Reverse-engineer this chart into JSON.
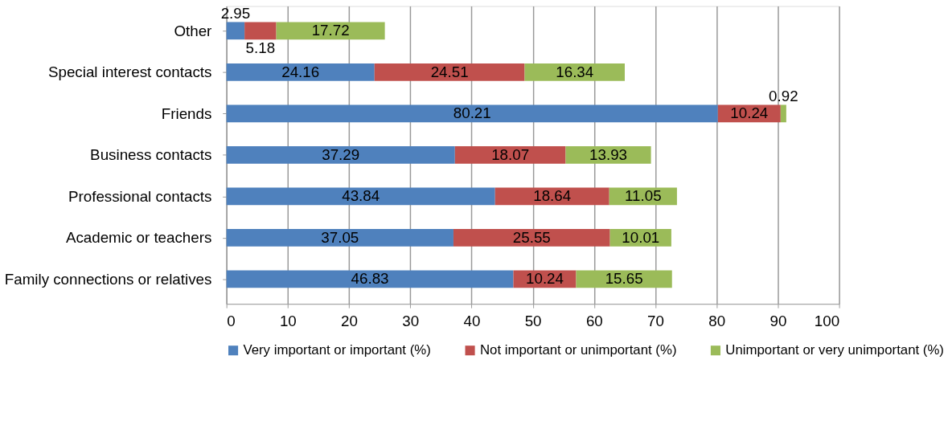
{
  "chart_data": {
    "type": "bar",
    "orientation": "horizontal",
    "stacked": true,
    "data_labels": true,
    "grid": "x",
    "legend": "bottom",
    "categories": [
      "Other",
      "Special interest contacts",
      "Friends",
      "Business contacts",
      "Professional contacts",
      "Academic or teachers",
      "Family connections or relatives"
    ],
    "series": [
      {
        "name": "Very important or important (%)",
        "color": "#4f81bd",
        "values": [
          2.95,
          24.16,
          80.21,
          37.29,
          43.84,
          37.05,
          46.83
        ]
      },
      {
        "name": "Not important or unimportant (%)",
        "color": "#c0504d",
        "values": [
          5.18,
          24.51,
          10.24,
          18.07,
          18.64,
          25.55,
          10.24
        ]
      },
      {
        "name": "Unimportant or very unimportant (%)",
        "color": "#9bbb59",
        "values": [
          17.72,
          16.34,
          0.92,
          13.93,
          11.05,
          10.01,
          15.65
        ]
      }
    ],
    "xlim": [
      0,
      100
    ],
    "xticks": [
      0,
      10,
      20,
      30,
      40,
      50,
      60,
      70,
      80,
      90,
      100
    ]
  }
}
